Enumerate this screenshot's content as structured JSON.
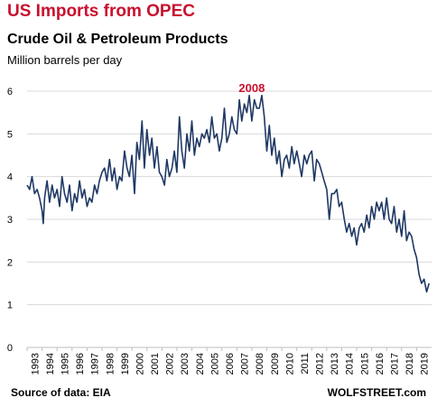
{
  "chart_data": {
    "type": "line",
    "title": "US Imports from OPEC",
    "subtitle": "Crude Oil & Petroleum Products",
    "unit_label": "Million barrels per day",
    "ylim": [
      0,
      6
    ],
    "xlim": [
      1993,
      2020
    ],
    "yticks": [
      0,
      1,
      2,
      3,
      4,
      5,
      6
    ],
    "xticks": [
      "1993",
      "1994",
      "1995",
      "1996",
      "1997",
      "1998",
      "1999",
      "2000",
      "2001",
      "2002",
      "2003",
      "2004",
      "2005",
      "2006",
      "2007",
      "2008",
      "2009",
      "2010",
      "2011",
      "2012",
      "2013",
      "2014",
      "2015",
      "2016",
      "2017",
      "2018",
      "2019"
    ],
    "grid": "horizontal",
    "line_color": "#1f3864",
    "annotation": {
      "text": "2008",
      "x": 2008.0,
      "y": 5.85,
      "color": "#c8102e"
    },
    "series": [
      {
        "x": [
          1993.0,
          1993.17,
          1993.33,
          1993.5,
          1993.67,
          1993.83,
          1994.0,
          1994.08,
          1994.17,
          1994.33,
          1994.5,
          1994.67,
          1994.83,
          1995.0,
          1995.17,
          1995.33,
          1995.5,
          1995.67,
          1995.83,
          1996.0,
          1996.17,
          1996.33,
          1996.5,
          1996.67,
          1996.83,
          1997.0,
          1997.17,
          1997.33,
          1997.5,
          1997.67,
          1997.83,
          1998.0,
          1998.17,
          1998.33,
          1998.5,
          1998.67,
          1998.83,
          1999.0,
          1999.17,
          1999.33,
          1999.5,
          1999.67,
          1999.83,
          2000.0,
          2000.17,
          2000.33,
          2000.5,
          2000.67,
          2000.83,
          2001.0,
          2001.17,
          2001.33,
          2001.5,
          2001.67,
          2001.83,
          2002.0,
          2002.17,
          2002.33,
          2002.5,
          2002.67,
          2002.83,
          2003.0,
          2003.17,
          2003.33,
          2003.5,
          2003.67,
          2003.83,
          2004.0,
          2004.17,
          2004.33,
          2004.5,
          2004.67,
          2004.83,
          2005.0,
          2005.17,
          2005.33,
          2005.5,
          2005.67,
          2005.83,
          2006.0,
          2006.17,
          2006.33,
          2006.5,
          2006.67,
          2006.83,
          2007.0,
          2007.17,
          2007.33,
          2007.5,
          2007.67,
          2007.83,
          2008.0,
          2008.17,
          2008.33,
          2008.5,
          2008.67,
          2008.83,
          2009.0,
          2009.17,
          2009.33,
          2009.5,
          2009.67,
          2009.83,
          2010.0,
          2010.17,
          2010.33,
          2010.5,
          2010.67,
          2010.83,
          2011.0,
          2011.17,
          2011.33,
          2011.5,
          2011.67,
          2011.83,
          2012.0,
          2012.17,
          2012.33,
          2012.5,
          2012.67,
          2012.83,
          2013.0,
          2013.17,
          2013.33,
          2013.5,
          2013.67,
          2013.83,
          2014.0,
          2014.17,
          2014.33,
          2014.5,
          2014.67,
          2014.83,
          2015.0,
          2015.17,
          2015.33,
          2015.5,
          2015.67,
          2015.83,
          2016.0,
          2016.17,
          2016.33,
          2016.5,
          2016.67,
          2016.83,
          2017.0,
          2017.17,
          2017.33,
          2017.5,
          2017.67,
          2017.83,
          2018.0,
          2018.17,
          2018.33,
          2018.5,
          2018.67,
          2018.83,
          2019.0,
          2019.17,
          2019.33,
          2019.5,
          2019.67,
          2019.83
        ],
        "y": [
          3.8,
          3.7,
          4.0,
          3.6,
          3.7,
          3.5,
          3.2,
          2.9,
          3.5,
          3.9,
          3.4,
          3.8,
          3.5,
          3.7,
          3.3,
          4.0,
          3.6,
          3.4,
          3.8,
          3.2,
          3.6,
          3.4,
          3.9,
          3.5,
          3.7,
          3.3,
          3.5,
          3.4,
          3.8,
          3.6,
          3.9,
          4.1,
          4.2,
          3.9,
          4.4,
          3.9,
          4.2,
          3.7,
          4.0,
          3.9,
          4.6,
          4.2,
          4.0,
          4.5,
          3.6,
          4.8,
          4.4,
          5.3,
          4.2,
          5.1,
          4.5,
          4.9,
          4.2,
          4.7,
          4.1,
          4.0,
          3.8,
          4.4,
          4.0,
          4.2,
          4.6,
          4.1,
          5.4,
          4.6,
          4.2,
          5.0,
          4.6,
          5.3,
          4.5,
          4.9,
          4.7,
          5.0,
          4.9,
          5.1,
          4.8,
          5.4,
          4.9,
          5.0,
          4.6,
          4.9,
          5.6,
          4.8,
          5.0,
          5.4,
          5.1,
          5.0,
          5.8,
          5.3,
          5.7,
          5.5,
          5.9,
          5.3,
          5.8,
          5.6,
          5.6,
          5.9,
          5.4,
          4.6,
          5.2,
          4.5,
          4.9,
          4.3,
          4.6,
          4.0,
          4.4,
          4.5,
          4.2,
          4.7,
          4.3,
          4.6,
          4.3,
          4.0,
          4.5,
          4.3,
          4.5,
          4.6,
          3.9,
          4.4,
          4.3,
          4.1,
          3.9,
          3.7,
          3.0,
          3.6,
          3.6,
          3.7,
          3.3,
          3.4,
          3.0,
          2.7,
          2.9,
          2.6,
          2.8,
          2.4,
          2.8,
          2.9,
          2.7,
          3.1,
          2.8,
          3.3,
          3.0,
          3.4,
          3.2,
          3.4,
          3.0,
          3.5,
          3.0,
          2.9,
          3.3,
          2.7,
          3.0,
          2.6,
          3.2,
          2.5,
          2.7,
          2.6,
          2.3,
          2.1,
          1.7,
          1.5,
          1.6,
          1.3,
          1.5
        ]
      }
    ]
  },
  "footer": {
    "source": "Source of data: EIA",
    "brand": "WOLFSTREET.com"
  }
}
